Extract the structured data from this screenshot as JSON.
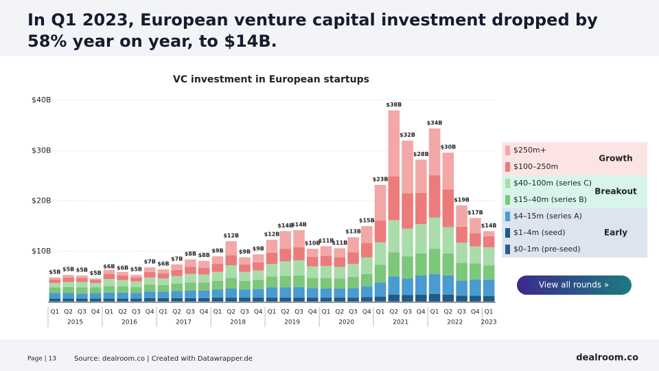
{
  "header": {
    "title": "In Q1 2023, European venture capital investment dropped by 58% year on year, to $14B."
  },
  "chart_data": {
    "type": "stacked_bar",
    "title": "VC investment in European startups",
    "categories": [
      "Q1",
      "Q2",
      "Q3",
      "Q4",
      "Q1",
      "Q2",
      "Q3",
      "Q4",
      "Q1",
      "Q2",
      "Q3",
      "Q4",
      "Q1",
      "Q2",
      "Q3",
      "Q4",
      "Q1",
      "Q2",
      "Q3",
      "Q4",
      "Q1",
      "Q2",
      "Q3",
      "Q4",
      "Q1",
      "Q2",
      "Q3",
      "Q4",
      "Q1",
      "Q2",
      "Q3",
      "Q4",
      "Q1"
    ],
    "year_groups": [
      "2015",
      "2016",
      "2017",
      "2018",
      "2019",
      "2020",
      "2021",
      "2022",
      "2023"
    ],
    "series": [
      {
        "name": "$0–1m (pre-seed)",
        "color": "#2b5d86",
        "values": [
          0.1,
          0.1,
          0.1,
          0.1,
          0.1,
          0.1,
          0.1,
          0.1,
          0.1,
          0.1,
          0.1,
          0.1,
          0.1,
          0.1,
          0.1,
          0.1,
          0.1,
          0.1,
          0.1,
          0.1,
          0.1,
          0.1,
          0.1,
          0.1,
          0.1,
          0.2,
          0.2,
          0.2,
          0.2,
          0.2,
          0.2,
          0.2,
          0.2
        ]
      },
      {
        "name": "$1–4m (seed)",
        "color": "#1f5b85",
        "values": [
          0.5,
          0.5,
          0.5,
          0.5,
          0.5,
          0.5,
          0.5,
          0.6,
          0.6,
          0.6,
          0.6,
          0.6,
          0.7,
          0.7,
          0.7,
          0.7,
          0.7,
          0.7,
          0.7,
          0.7,
          0.7,
          0.7,
          0.7,
          0.8,
          0.9,
          1.2,
          1.1,
          1.2,
          1.3,
          1.2,
          1.0,
          1.0,
          0.9
        ]
      },
      {
        "name": "$4–15m (series A)",
        "color": "#4a9bd0",
        "values": [
          1.1,
          1.1,
          1.0,
          1.1,
          1.2,
          1.2,
          1.1,
          1.3,
          1.3,
          1.4,
          1.5,
          1.5,
          1.6,
          1.8,
          1.6,
          1.7,
          2.0,
          2.0,
          2.1,
          1.9,
          1.8,
          1.8,
          1.9,
          2.1,
          2.8,
          3.6,
          3.3,
          3.8,
          4.0,
          3.8,
          3.0,
          3.2,
          3.3
        ]
      },
      {
        "name": "$15–40m (series B)",
        "color": "#7cc77a",
        "values": [
          1.1,
          1.2,
          1.2,
          1.1,
          1.3,
          1.2,
          1.2,
          1.4,
          1.3,
          1.5,
          1.6,
          1.6,
          1.7,
          2.1,
          1.7,
          1.8,
          2.2,
          2.3,
          2.3,
          2.0,
          2.1,
          2.0,
          2.2,
          2.5,
          3.5,
          4.8,
          4.4,
          4.4,
          5.0,
          4.4,
          3.5,
          3.2,
          2.8
        ]
      },
      {
        "name": "$40–100m (series C)",
        "color": "#a9dcaa",
        "values": [
          0.9,
          1.0,
          1.1,
          0.9,
          1.4,
          1.3,
          1.1,
          1.4,
          1.3,
          1.5,
          1.7,
          1.6,
          1.8,
          2.5,
          1.8,
          1.9,
          2.5,
          2.9,
          3.0,
          2.3,
          2.4,
          2.3,
          2.6,
          3.3,
          4.5,
          6.4,
          5.5,
          5.8,
          6.2,
          5.2,
          4.0,
          3.4,
          3.6
        ]
      },
      {
        "name": "$100–250m",
        "color": "#ec7b7b",
        "values": [
          0.7,
          0.9,
          0.8,
          0.6,
          1.0,
          0.9,
          0.8,
          1.1,
          1.0,
          1.2,
          1.4,
          1.3,
          1.6,
          2.0,
          1.5,
          1.6,
          2.2,
          2.5,
          2.6,
          1.9,
          2.0,
          1.9,
          2.3,
          2.8,
          4.3,
          8.7,
          7.0,
          6.2,
          8.4,
          7.5,
          3.2,
          2.6,
          2.2
        ]
      },
      {
        "name": "$250m+",
        "color": "#f3a7a7",
        "values": [
          0.4,
          0.5,
          0.5,
          0.3,
          0.8,
          0.7,
          0.5,
          0.9,
          0.8,
          1.1,
          1.5,
          1.4,
          1.5,
          2.8,
          1.4,
          1.6,
          2.6,
          3.5,
          3.4,
          1.6,
          1.9,
          1.8,
          3.0,
          3.4,
          7.1,
          13.1,
          10.5,
          6.6,
          9.3,
          7.3,
          4.2,
          3.0,
          1.0
        ]
      }
    ],
    "totals": {
      "values": [
        4.8,
        5.3,
        5.2,
        4.6,
        5.9,
        5.6,
        5.3,
        6.8,
        6.4,
        7.4,
        8.4,
        8.1,
        9.0,
        12.0,
        8.8,
        9.4,
        12.3,
        14.0,
        14.2,
        10.5,
        11.0,
        10.6,
        12.8,
        15.0,
        23.2,
        38.0,
        32.0,
        28.2,
        34.4,
        29.6,
        19.1,
        16.6,
        14.0
      ],
      "value_labels": [
        "$5B",
        "$5B",
        "$5B",
        "$5B",
        "$6B",
        "$6B",
        "$5B",
        "$7B",
        "$6B",
        "$7B",
        "$8B",
        "$8B",
        "$9B",
        "$12B",
        "$9B",
        "$9B",
        "$12B",
        "$14B",
        "$14B",
        "$10B",
        "$11B",
        "$11B",
        "$13B",
        "$15B",
        "$23B",
        "$38B",
        "$32B",
        "$28B",
        "$34B",
        "$30B",
        "$19B",
        "$17B",
        "$14B"
      ]
    },
    "ylim": [
      0,
      40
    ],
    "yticks": [
      {
        "value": 10,
        "label": "$10B"
      },
      {
        "value": 20,
        "label": "$20B"
      },
      {
        "value": 30,
        "label": "$30B"
      },
      {
        "value": 40,
        "label": "$40B"
      }
    ],
    "grid": true,
    "legend_groups": [
      {
        "label": "Growth",
        "color": "#fde4e4"
      },
      {
        "label": "Breakout",
        "color": "#d9f5ea"
      },
      {
        "label": "Early",
        "color": "#dde3ef"
      }
    ]
  },
  "button": "View all rounds »",
  "footer": {
    "page": "Page | 13",
    "source": "Source: dealroom.co | Created with Datawrapper.de",
    "logo": "dealroom.co"
  }
}
